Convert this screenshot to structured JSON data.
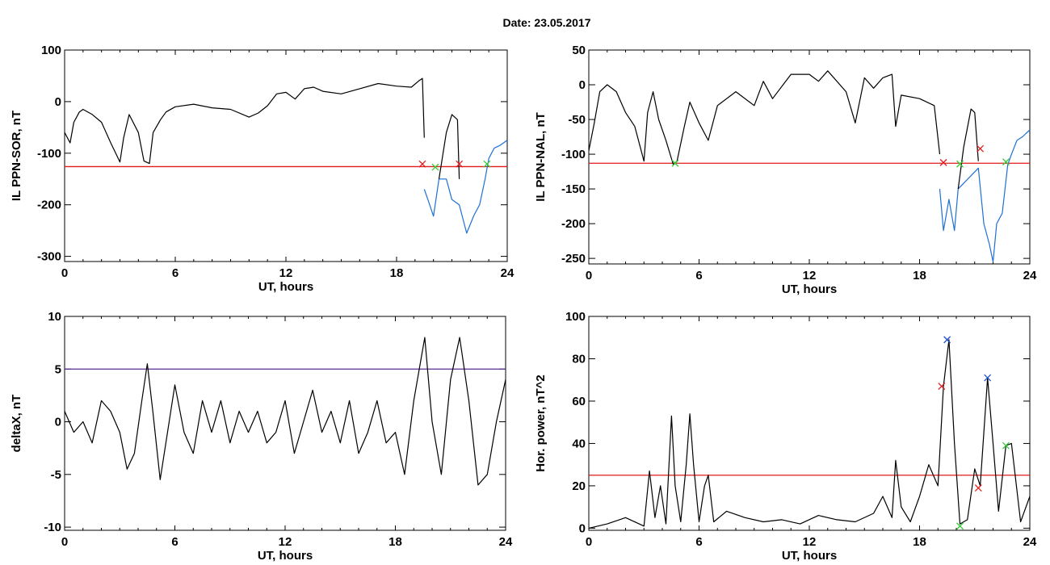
{
  "figure": {
    "title": "Date:  23.05.2017"
  },
  "chart_data": [
    {
      "type": "line",
      "panel": "top-left",
      "xlabel": "UT, hours",
      "ylabel": "IL PPN-SOR, nT",
      "xlim": [
        0,
        24
      ],
      "ylim": [
        -310,
        100
      ],
      "xticks": [
        "0",
        "6",
        "12",
        "18",
        "24"
      ],
      "yticks": [
        "100",
        "0",
        "-100",
        "-200",
        "-300"
      ],
      "threshold": {
        "value": -126,
        "color": "#e31a1c"
      },
      "series": [
        {
          "color": "#000000",
          "x": [
            0,
            0.3,
            0.5,
            0.8,
            1.0,
            1.5,
            2.0,
            2.5,
            3.0,
            3.2,
            3.5,
            4.0,
            4.3,
            4.6,
            4.8,
            5.2,
            5.5,
            6.0,
            7.0,
            8.0,
            9.0,
            10.0,
            10.5,
            11.0,
            11.5,
            12.0,
            12.5,
            13.0,
            13.5,
            14.0,
            15.0,
            16.0,
            17.0,
            18.0,
            18.8,
            19.2,
            19.4,
            19.5
          ],
          "y": [
            -60,
            -80,
            -40,
            -20,
            -15,
            -25,
            -40,
            -80,
            -117,
            -70,
            -25,
            -60,
            -115,
            -120,
            -60,
            -35,
            -20,
            -10,
            -5,
            -12,
            -15,
            -30,
            -22,
            -8,
            15,
            18,
            5,
            25,
            28,
            20,
            15,
            25,
            35,
            30,
            28,
            40,
            45,
            -70
          ]
        },
        {
          "color": "#1f6fd6",
          "x": [
            19.5,
            19.7,
            20.0,
            20.3,
            20.7,
            21.0,
            21.4,
            21.8,
            22.2,
            22.5,
            22.8,
            23.0,
            23.3,
            23.6,
            24.0
          ],
          "y": [
            -170,
            -190,
            -222,
            -150,
            -150,
            -190,
            -200,
            -255,
            -220,
            -200,
            -150,
            -110,
            -90,
            -85,
            -75
          ]
        },
        {
          "color": "#000000",
          "x": [
            20.3,
            20.7,
            21.0,
            21.3,
            21.4
          ],
          "y": [
            -150,
            -60,
            -25,
            -35,
            -150
          ]
        }
      ],
      "markers": [
        {
          "x": 19.4,
          "y": -121,
          "color": "#e31a1c"
        },
        {
          "x": 20.1,
          "y": -127,
          "color": "#33cc33"
        },
        {
          "x": 21.4,
          "y": -121,
          "color": "#e31a1c"
        },
        {
          "x": 22.9,
          "y": -121,
          "color": "#33cc33"
        }
      ]
    },
    {
      "type": "line",
      "panel": "top-right",
      "xlabel": "UT, hours",
      "ylabel": "IL PPN-NAL, nT",
      "xlim": [
        0,
        24
      ],
      "ylim": [
        -258,
        50
      ],
      "xticks": [
        "0",
        "6",
        "12",
        "18",
        "24"
      ],
      "yticks": [
        "50",
        "0",
        "-50",
        "-100",
        "-150",
        "-200",
        "-250"
      ],
      "threshold": {
        "value": -113,
        "color": "#e31a1c"
      },
      "series": [
        {
          "color": "#000000",
          "x": [
            0,
            0.3,
            0.6,
            1.0,
            1.5,
            2.0,
            2.5,
            3.0,
            3.2,
            3.5,
            3.8,
            4.2,
            4.6,
            4.8,
            5.2,
            5.5,
            6.0,
            6.5,
            7.0,
            8.0,
            9.0,
            9.5,
            10.0,
            11.0,
            12.0,
            12.5,
            13.0,
            14.0,
            14.5,
            15.0,
            15.5,
            16.0,
            16.5,
            16.7,
            17.0,
            18.0,
            18.8,
            19.1
          ],
          "y": [
            -95,
            -55,
            -10,
            0,
            -10,
            -40,
            -60,
            -110,
            -40,
            -10,
            -50,
            -80,
            -115,
            -110,
            -60,
            -25,
            -55,
            -80,
            -30,
            -10,
            -30,
            5,
            -20,
            15,
            15,
            5,
            20,
            -10,
            -55,
            10,
            -5,
            10,
            15,
            -60,
            -15,
            -20,
            -30,
            -100
          ]
        },
        {
          "color": "#1f6fd6",
          "x": [
            19.1,
            19.3,
            19.6,
            19.9,
            20.1,
            21.2,
            21.5,
            21.8,
            22.0,
            22.2,
            22.5,
            22.8,
            23.0,
            23.3,
            23.6,
            24.0
          ],
          "y": [
            -150,
            -210,
            -165,
            -210,
            -150,
            -120,
            -200,
            -230,
            -255,
            -200,
            -185,
            -115,
            -100,
            -80,
            -75,
            -65
          ]
        },
        {
          "color": "#000000",
          "x": [
            20.1,
            20.4,
            20.8,
            21.0,
            21.2
          ],
          "y": [
            -150,
            -90,
            -35,
            -40,
            -110
          ]
        }
      ],
      "markers": [
        {
          "x": 4.7,
          "y": -113,
          "color": "#33cc33"
        },
        {
          "x": 19.3,
          "y": -112,
          "color": "#e31a1c"
        },
        {
          "x": 20.2,
          "y": -114,
          "color": "#33cc33"
        },
        {
          "x": 21.3,
          "y": -92,
          "color": "#e31a1c"
        },
        {
          "x": 22.7,
          "y": -111,
          "color": "#33cc33"
        }
      ]
    },
    {
      "type": "line",
      "panel": "bottom-left",
      "xlabel": "UT, hours",
      "ylabel": "deltaX, nT",
      "xlim": [
        0,
        24
      ],
      "ylim": [
        -10.3,
        10
      ],
      "xticks": [
        "0",
        "6",
        "12",
        "18",
        "24"
      ],
      "yticks": [
        "10",
        "5",
        "0",
        "-5",
        "-10"
      ],
      "threshold": {
        "value": 5,
        "color": "#5b2d90"
      },
      "series": [
        {
          "color": "#000000",
          "x": [
            0,
            0.5,
            1.0,
            1.5,
            2.0,
            2.5,
            3.0,
            3.4,
            3.8,
            4.2,
            4.5,
            4.8,
            5.2,
            5.6,
            6.0,
            6.5,
            7.0,
            7.5,
            8.0,
            8.5,
            9.0,
            9.5,
            10.0,
            10.5,
            11.0,
            11.5,
            12.0,
            12.5,
            13.0,
            13.5,
            14.0,
            14.5,
            15.0,
            15.5,
            16.0,
            16.5,
            17.0,
            17.5,
            18.0,
            18.5,
            19.0,
            19.6,
            20.0,
            20.5,
            21.0,
            21.5,
            22.0,
            22.5,
            23.0,
            23.5,
            24.0
          ],
          "y": [
            1,
            -1,
            0,
            -2,
            2,
            1,
            -1,
            -4.5,
            -3,
            2,
            5.5,
            1,
            -5.5,
            -1,
            3.5,
            -1,
            -3,
            2,
            -1,
            2,
            -2,
            1,
            -1,
            1,
            -2,
            -1,
            2,
            -3,
            0,
            3,
            -1,
            1,
            -2,
            2,
            -3,
            -1,
            2,
            -2,
            -1,
            -5,
            2,
            8,
            0,
            -5,
            4,
            8,
            2,
            -6,
            -5,
            0,
            4
          ]
        }
      ],
      "markers": []
    },
    {
      "type": "line",
      "panel": "bottom-right",
      "xlabel": "UT, hours",
      "ylabel": "Hor. power, nT^2",
      "xlim": [
        0,
        24
      ],
      "ylim": [
        -1,
        100
      ],
      "xticks": [
        "0",
        "6",
        "12",
        "18",
        "24"
      ],
      "yticks": [
        "100",
        "80",
        "60",
        "40",
        "20",
        "0"
      ],
      "threshold": {
        "value": 25,
        "color": "#e31a1c"
      },
      "series": [
        {
          "color": "#000000",
          "x": [
            0,
            1.0,
            2.0,
            3.0,
            3.3,
            3.6,
            3.9,
            4.2,
            4.5,
            4.7,
            5.0,
            5.3,
            5.5,
            5.7,
            6.0,
            6.3,
            6.5,
            6.8,
            7.5,
            8.5,
            9.5,
            10.5,
            11.5,
            12.5,
            13.5,
            14.5,
            15.5,
            16.0,
            16.5,
            16.7,
            17.0,
            17.5,
            18.0,
            18.5,
            19.0,
            19.3,
            19.6,
            19.9,
            20.2,
            20.6,
            21.0,
            21.3,
            21.7,
            22.0,
            22.3,
            22.7,
            23.0,
            23.5,
            24.0
          ],
          "y": [
            0,
            2,
            5,
            1,
            27,
            5,
            20,
            2,
            53,
            20,
            3,
            30,
            54,
            30,
            3,
            20,
            25,
            3,
            8,
            5,
            3,
            4,
            2,
            6,
            4,
            3,
            7,
            15,
            5,
            32,
            10,
            3,
            15,
            30,
            20,
            67,
            89,
            40,
            2,
            4,
            28,
            20,
            71,
            40,
            8,
            39,
            40,
            3,
            15
          ]
        }
      ],
      "markers": [
        {
          "x": 19.2,
          "y": 67,
          "color": "#e31a1c"
        },
        {
          "x": 19.5,
          "y": 89,
          "color": "#1f4fd6"
        },
        {
          "x": 20.2,
          "y": 1,
          "color": "#33cc33"
        },
        {
          "x": 21.2,
          "y": 19,
          "color": "#e31a1c"
        },
        {
          "x": 21.7,
          "y": 71,
          "color": "#1f4fd6"
        },
        {
          "x": 22.7,
          "y": 39,
          "color": "#33cc33"
        }
      ]
    }
  ]
}
